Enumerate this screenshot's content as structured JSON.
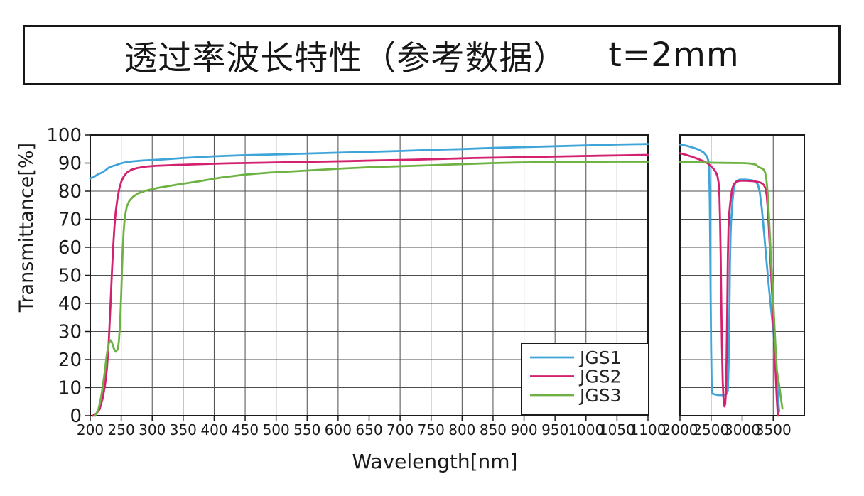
{
  "title": {
    "main": "透过率波长特性（参考数据）",
    "suffix": "t=2mm"
  },
  "chart_data": {
    "type": "line",
    "title": "透过率波长特性（参考数据） t=2mm",
    "xlabel": "Wavelength[nm]",
    "ylabel": "Transmittance[%]",
    "ylim": [
      0,
      100
    ],
    "y_ticks": [
      0,
      10,
      20,
      30,
      40,
      50,
      60,
      70,
      80,
      90,
      100
    ],
    "grid": true,
    "broken_x_axis": true,
    "panels": [
      {
        "x_range": [
          200,
          1100
        ],
        "ticks": [
          200,
          250,
          300,
          350,
          400,
          450,
          500,
          550,
          600,
          650,
          700,
          750,
          800,
          850,
          900,
          950,
          1000,
          1050,
          1100
        ]
      },
      {
        "x_range": [
          2000,
          4000
        ],
        "ticks": [
          2000,
          2500,
          3000,
          3500
        ]
      }
    ],
    "legend": {
      "position": "inside-lower-right",
      "entries": [
        "JGS1",
        "JGS2",
        "JGS3"
      ]
    },
    "series": [
      {
        "name": "JGS1",
        "color": "#3fa5d9",
        "points_panel1": [
          [
            200,
            84.5
          ],
          [
            207,
            85.2
          ],
          [
            213,
            86.1
          ],
          [
            219,
            86.6
          ],
          [
            225,
            87.5
          ],
          [
            230,
            88.4
          ],
          [
            236,
            88.9
          ],
          [
            242,
            89.3
          ],
          [
            248,
            89.8
          ],
          [
            255,
            90.2
          ],
          [
            268,
            90.6
          ],
          [
            285,
            90.9
          ],
          [
            310,
            91.2
          ],
          [
            350,
            91.8
          ],
          [
            400,
            92.4
          ],
          [
            450,
            92.8
          ],
          [
            500,
            93.1
          ],
          [
            550,
            93.4
          ],
          [
            600,
            93.7
          ],
          [
            650,
            94.0
          ],
          [
            700,
            94.3
          ],
          [
            750,
            94.7
          ],
          [
            800,
            95.0
          ],
          [
            850,
            95.4
          ],
          [
            900,
            95.7
          ],
          [
            950,
            96.0
          ],
          [
            1000,
            96.3
          ],
          [
            1050,
            96.6
          ],
          [
            1100,
            96.8
          ]
        ],
        "points_panel2": [
          [
            2000,
            96.6
          ],
          [
            2100,
            96.2
          ],
          [
            2200,
            95.6
          ],
          [
            2300,
            94.8
          ],
          [
            2380,
            93.8
          ],
          [
            2430,
            92.5
          ],
          [
            2455,
            91.0
          ],
          [
            2470,
            88
          ],
          [
            2480,
            75
          ],
          [
            2490,
            50
          ],
          [
            2500,
            25
          ],
          [
            2510,
            11
          ],
          [
            2525,
            7.8
          ],
          [
            2600,
            7.4
          ],
          [
            2700,
            7.3
          ],
          [
            2745,
            7.6
          ],
          [
            2770,
            9
          ],
          [
            2785,
            20
          ],
          [
            2795,
            38
          ],
          [
            2805,
            55
          ],
          [
            2815,
            65
          ],
          [
            2822,
            69
          ],
          [
            2832,
            72
          ],
          [
            2845,
            76.5
          ],
          [
            2862,
            80
          ],
          [
            2885,
            82.6
          ],
          [
            2915,
            83.7
          ],
          [
            2960,
            84.1
          ],
          [
            3060,
            84.1
          ],
          [
            3150,
            83.9
          ],
          [
            3210,
            83.6
          ],
          [
            3255,
            82.3
          ],
          [
            3285,
            79.5
          ],
          [
            3315,
            74
          ],
          [
            3345,
            67
          ],
          [
            3380,
            58
          ],
          [
            3420,
            48
          ],
          [
            3460,
            39
          ],
          [
            3500,
            30.5
          ],
          [
            3535,
            21
          ],
          [
            3560,
            13
          ],
          [
            3580,
            6
          ],
          [
            3595,
            1.5
          ]
        ]
      },
      {
        "name": "JGS2",
        "color": "#d4216f",
        "points_panel1": [
          [
            204,
            0
          ],
          [
            210,
            0.8
          ],
          [
            215,
            2.2
          ],
          [
            220,
            6
          ],
          [
            224,
            11
          ],
          [
            227,
            17
          ],
          [
            230,
            27
          ],
          [
            233,
            41
          ],
          [
            235,
            51
          ],
          [
            237,
            60
          ],
          [
            239,
            67
          ],
          [
            241,
            72.5
          ],
          [
            244,
            77.5
          ],
          [
            247,
            81
          ],
          [
            250,
            83.3
          ],
          [
            254,
            85.2
          ],
          [
            259,
            86.6
          ],
          [
            266,
            87.6
          ],
          [
            275,
            88.2
          ],
          [
            288,
            88.7
          ],
          [
            305,
            89.0
          ],
          [
            335,
            89.3
          ],
          [
            375,
            89.6
          ],
          [
            420,
            89.9
          ],
          [
            470,
            90.1
          ],
          [
            520,
            90.3
          ],
          [
            570,
            90.5
          ],
          [
            620,
            90.7
          ],
          [
            670,
            91.0
          ],
          [
            720,
            91.2
          ],
          [
            770,
            91.5
          ],
          [
            820,
            91.8
          ],
          [
            870,
            92.0
          ],
          [
            920,
            92.2
          ],
          [
            970,
            92.4
          ],
          [
            1020,
            92.6
          ],
          [
            1060,
            92.75
          ],
          [
            1100,
            92.9
          ]
        ],
        "points_panel2": [
          [
            2000,
            93.5
          ],
          [
            2100,
            92.9
          ],
          [
            2200,
            92.2
          ],
          [
            2300,
            91.4
          ],
          [
            2400,
            90.5
          ],
          [
            2450,
            89.8
          ],
          [
            2500,
            88.8
          ],
          [
            2545,
            87.8
          ],
          [
            2580,
            86.6
          ],
          [
            2605,
            85.2
          ],
          [
            2622,
            83
          ],
          [
            2635,
            78
          ],
          [
            2645,
            70
          ],
          [
            2655,
            57
          ],
          [
            2665,
            40
          ],
          [
            2675,
            25
          ],
          [
            2688,
            12
          ],
          [
            2700,
            6
          ],
          [
            2715,
            3.3
          ],
          [
            2728,
            4.2
          ],
          [
            2740,
            9
          ],
          [
            2750,
            20
          ],
          [
            2760,
            38
          ],
          [
            2770,
            57
          ],
          [
            2780,
            67
          ],
          [
            2792,
            72
          ],
          [
            2805,
            75
          ],
          [
            2820,
            78
          ],
          [
            2840,
            80.8
          ],
          [
            2865,
            82.4
          ],
          [
            2900,
            83.3
          ],
          [
            2960,
            83.7
          ],
          [
            3060,
            83.7
          ],
          [
            3160,
            83.6
          ],
          [
            3250,
            83.3
          ],
          [
            3310,
            82.9
          ],
          [
            3350,
            82.2
          ],
          [
            3375,
            81
          ],
          [
            3395,
            78.5
          ],
          [
            3412,
            74
          ],
          [
            3430,
            67
          ],
          [
            3450,
            58
          ],
          [
            3470,
            49
          ],
          [
            3490,
            40
          ],
          [
            3510,
            30
          ],
          [
            3528,
            21
          ],
          [
            3545,
            12
          ],
          [
            3558,
            6
          ],
          [
            3570,
            1.5
          ],
          [
            3576,
            0
          ]
        ]
      },
      {
        "name": "JGS3",
        "color": "#6fb244",
        "points_panel1": [
          [
            208,
            0
          ],
          [
            213,
            2
          ],
          [
            217,
            6
          ],
          [
            220,
            10
          ],
          [
            223,
            15
          ],
          [
            226,
            20.5
          ],
          [
            229,
            25
          ],
          [
            232,
            27
          ],
          [
            235,
            26.2
          ],
          [
            238,
            24
          ],
          [
            241,
            22.8
          ],
          [
            244,
            23.5
          ],
          [
            246,
            26
          ],
          [
            248,
            32
          ],
          [
            250,
            43
          ],
          [
            252,
            57
          ],
          [
            254,
            66
          ],
          [
            256,
            71
          ],
          [
            259,
            74.5
          ],
          [
            263,
            76.5
          ],
          [
            269,
            78
          ],
          [
            277,
            79.2
          ],
          [
            290,
            80.2
          ],
          [
            310,
            81.2
          ],
          [
            340,
            82.3
          ],
          [
            375,
            83.5
          ],
          [
            410,
            84.8
          ],
          [
            450,
            85.9
          ],
          [
            490,
            86.6
          ],
          [
            530,
            87.1
          ],
          [
            570,
            87.6
          ],
          [
            610,
            88.1
          ],
          [
            650,
            88.5
          ],
          [
            690,
            88.8
          ],
          [
            730,
            89.1
          ],
          [
            770,
            89.4
          ],
          [
            810,
            89.7
          ],
          [
            850,
            90.0
          ],
          [
            890,
            90.2
          ],
          [
            940,
            90.35
          ],
          [
            1000,
            90.45
          ],
          [
            1050,
            90.5
          ],
          [
            1100,
            90.5
          ]
        ],
        "points_panel2": [
          [
            2000,
            90.3
          ],
          [
            2200,
            90.3
          ],
          [
            2400,
            90.2
          ],
          [
            2600,
            90.1
          ],
          [
            2800,
            90.05
          ],
          [
            3000,
            90.0
          ],
          [
            3100,
            89.9
          ],
          [
            3170,
            89.7
          ],
          [
            3220,
            89.4
          ],
          [
            3255,
            88.8
          ],
          [
            3280,
            88.4
          ],
          [
            3320,
            88.1
          ],
          [
            3350,
            87.6
          ],
          [
            3370,
            86.6
          ],
          [
            3388,
            84.5
          ],
          [
            3402,
            81.5
          ],
          [
            3415,
            78
          ],
          [
            3430,
            72
          ],
          [
            3445,
            65
          ],
          [
            3462,
            57
          ],
          [
            3480,
            49
          ],
          [
            3500,
            41
          ],
          [
            3520,
            32
          ],
          [
            3540,
            23
          ],
          [
            3558,
            16.5
          ],
          [
            3575,
            13.5
          ],
          [
            3592,
            11.5
          ],
          [
            3608,
            9
          ],
          [
            3622,
            6.5
          ],
          [
            3638,
            4
          ],
          [
            3648,
            2.5
          ]
        ]
      }
    ]
  }
}
